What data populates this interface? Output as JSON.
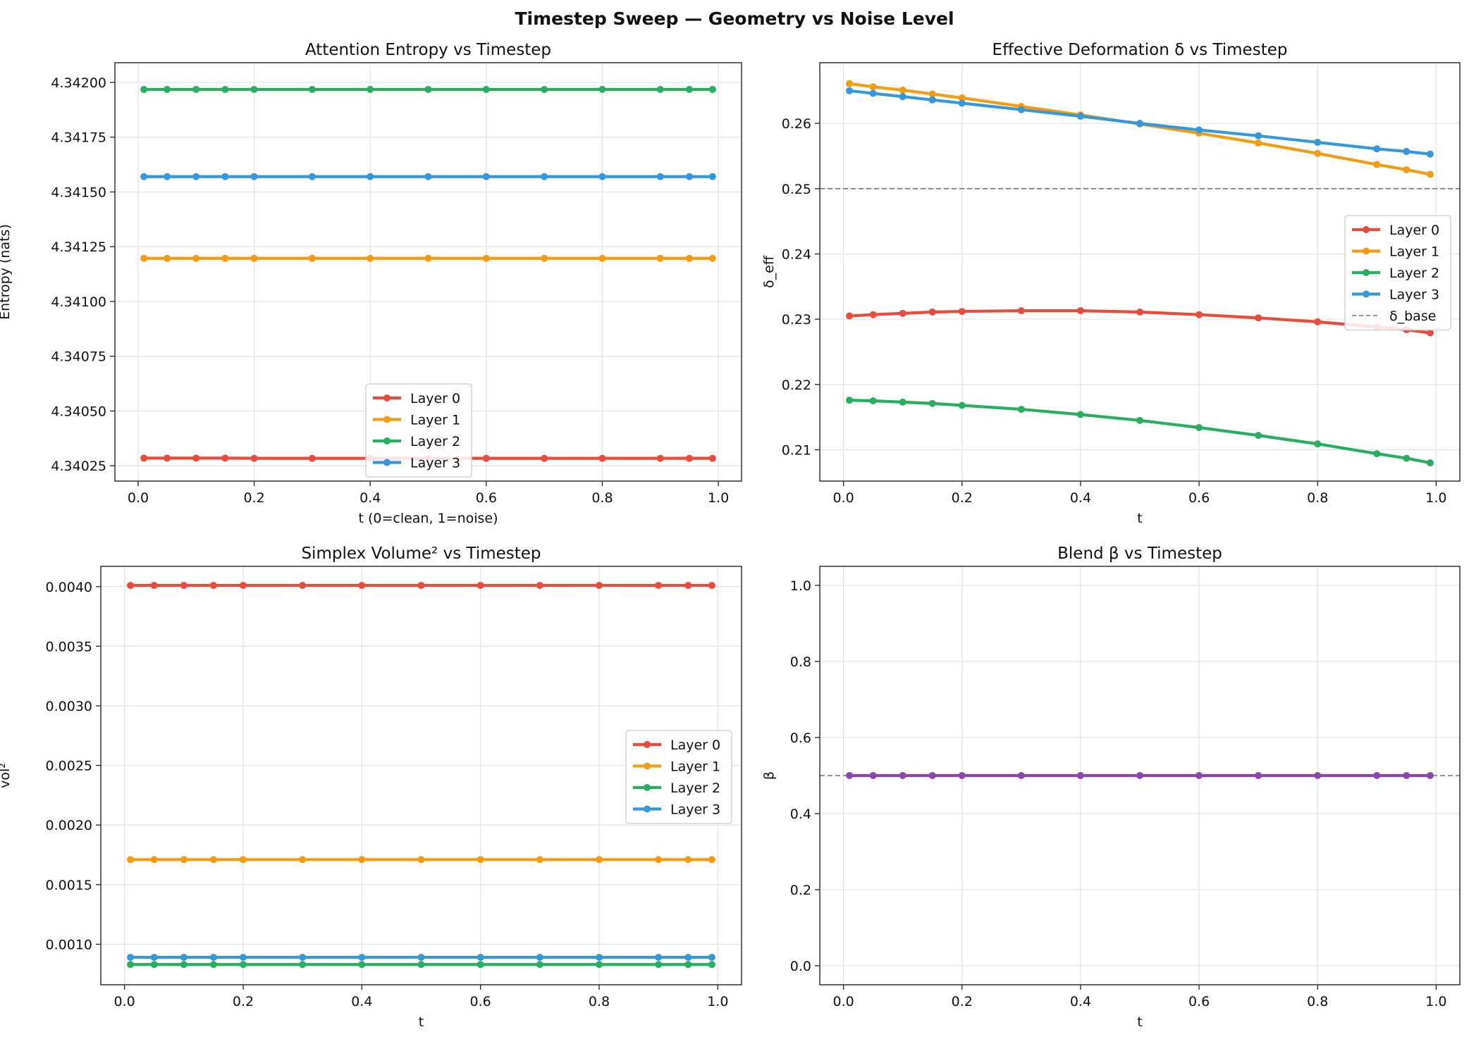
{
  "figure": {
    "title": "Timestep Sweep — Geometry vs Noise Level"
  },
  "chart_data": [
    {
      "type": "line",
      "title": "Attention Entropy vs Timestep",
      "xlabel": "t (0=clean, 1=noise)",
      "ylabel": "Entropy (nats)",
      "xlim": [
        -0.04,
        1.04
      ],
      "ylim": [
        4.34018,
        4.34209
      ],
      "xticks": [
        0.0,
        0.2,
        0.4,
        0.6,
        0.8,
        1.0
      ],
      "xtick_labels": [
        "0.0",
        "0.2",
        "0.4",
        "0.6",
        "0.8",
        "1.0"
      ],
      "yticks": [
        4.34025,
        4.3405,
        4.34075,
        4.341,
        4.34125,
        4.3415,
        4.34175,
        4.342
      ],
      "ytick_labels": [
        "4.34025",
        "4.34050",
        "4.34075",
        "4.34100",
        "4.34125",
        "4.34150",
        "4.34175",
        "4.34200"
      ],
      "grid": true,
      "legend": "lower-center",
      "x": [
        0.01,
        0.05,
        0.1,
        0.15,
        0.2,
        0.3,
        0.4,
        0.5,
        0.6,
        0.7,
        0.8,
        0.9,
        0.95,
        0.99
      ],
      "series": [
        {
          "name": "Layer 0",
          "color": "#e74c3c",
          "values": [
            4.340285,
            4.340285,
            4.340285,
            4.340285,
            4.340284,
            4.340284,
            4.340284,
            4.340284,
            4.340284,
            4.340284,
            4.340284,
            4.340284,
            4.340284,
            4.340284
          ]
        },
        {
          "name": "Layer 1",
          "color": "#f39c12",
          "values": [
            4.341197,
            4.341197,
            4.341197,
            4.341197,
            4.341197,
            4.341197,
            4.341197,
            4.341197,
            4.341197,
            4.341197,
            4.341197,
            4.341197,
            4.341197,
            4.341197
          ]
        },
        {
          "name": "Layer 2",
          "color": "#27ae60",
          "values": [
            4.341968,
            4.341968,
            4.341968,
            4.341968,
            4.341968,
            4.341968,
            4.341968,
            4.341968,
            4.341968,
            4.341968,
            4.341968,
            4.341968,
            4.341968,
            4.341968
          ]
        },
        {
          "name": "Layer 3",
          "color": "#3498db",
          "values": [
            4.34157,
            4.34157,
            4.34157,
            4.34157,
            4.34157,
            4.34157,
            4.34157,
            4.34157,
            4.34157,
            4.34157,
            4.34157,
            4.34157,
            4.34157,
            4.34157
          ]
        }
      ]
    },
    {
      "type": "line",
      "title": "Effective Deformation δ vs Timestep",
      "xlabel": "t",
      "ylabel": "δ_eff",
      "xlim": [
        -0.04,
        1.04
      ],
      "ylim": [
        0.2052,
        0.2693
      ],
      "xticks": [
        0.0,
        0.2,
        0.4,
        0.6,
        0.8,
        1.0
      ],
      "xtick_labels": [
        "0.0",
        "0.2",
        "0.4",
        "0.6",
        "0.8",
        "1.0"
      ],
      "yticks": [
        0.21,
        0.22,
        0.23,
        0.24,
        0.25,
        0.26
      ],
      "ytick_labels": [
        "0.21",
        "0.22",
        "0.23",
        "0.24",
        "0.25",
        "0.26"
      ],
      "grid": true,
      "legend": "center-right",
      "x": [
        0.01,
        0.05,
        0.1,
        0.15,
        0.2,
        0.3,
        0.4,
        0.5,
        0.6,
        0.7,
        0.8,
        0.9,
        0.95,
        0.99
      ],
      "series": [
        {
          "name": "Layer 0",
          "color": "#e74c3c",
          "values": [
            0.2305,
            0.2307,
            0.2309,
            0.2311,
            0.2312,
            0.2313,
            0.2313,
            0.2311,
            0.2307,
            0.2302,
            0.2296,
            0.2288,
            0.2284,
            0.2279
          ]
        },
        {
          "name": "Layer 1",
          "color": "#f39c12",
          "values": [
            0.2661,
            0.2656,
            0.2651,
            0.2645,
            0.2639,
            0.2626,
            0.2613,
            0.2599,
            0.2585,
            0.257,
            0.2554,
            0.2537,
            0.2529,
            0.2522
          ]
        },
        {
          "name": "Layer 2",
          "color": "#27ae60",
          "values": [
            0.2176,
            0.2175,
            0.2173,
            0.2171,
            0.2168,
            0.2162,
            0.2154,
            0.2145,
            0.2134,
            0.2122,
            0.2109,
            0.2094,
            0.2087,
            0.208
          ]
        },
        {
          "name": "Layer 3",
          "color": "#3498db",
          "values": [
            0.265,
            0.2646,
            0.2641,
            0.2636,
            0.2631,
            0.2621,
            0.2611,
            0.26,
            0.259,
            0.2581,
            0.2571,
            0.2561,
            0.2557,
            0.2553
          ]
        }
      ],
      "hlines": [
        {
          "name": "δ_base",
          "y": 0.25,
          "color": "#777777",
          "style": "dashed"
        }
      ]
    },
    {
      "type": "line",
      "title": "Simplex Volume² vs Timestep",
      "xlabel": "t",
      "ylabel": "vol²",
      "xlim": [
        -0.04,
        1.04
      ],
      "ylim": [
        0.00066,
        0.00417
      ],
      "xticks": [
        0.0,
        0.2,
        0.4,
        0.6,
        0.8,
        1.0
      ],
      "xtick_labels": [
        "0.0",
        "0.2",
        "0.4",
        "0.6",
        "0.8",
        "1.0"
      ],
      "yticks": [
        0.001,
        0.0015,
        0.002,
        0.0025,
        0.003,
        0.0035,
        0.004
      ],
      "ytick_labels": [
        "0.0010",
        "0.0015",
        "0.0020",
        "0.0025",
        "0.0030",
        "0.0035",
        "0.0040"
      ],
      "grid": true,
      "legend": "center-right",
      "x": [
        0.01,
        0.05,
        0.1,
        0.15,
        0.2,
        0.3,
        0.4,
        0.5,
        0.6,
        0.7,
        0.8,
        0.9,
        0.95,
        0.99
      ],
      "series": [
        {
          "name": "Layer 0",
          "color": "#e74c3c",
          "values": [
            0.00401,
            0.00401,
            0.00401,
            0.00401,
            0.00401,
            0.00401,
            0.00401,
            0.00401,
            0.00401,
            0.00401,
            0.00401,
            0.00401,
            0.00401,
            0.00401
          ]
        },
        {
          "name": "Layer 1",
          "color": "#f39c12",
          "values": [
            0.00171,
            0.00171,
            0.00171,
            0.00171,
            0.00171,
            0.00171,
            0.00171,
            0.00171,
            0.00171,
            0.00171,
            0.00171,
            0.00171,
            0.00171,
            0.00171
          ]
        },
        {
          "name": "Layer 2",
          "color": "#27ae60",
          "values": [
            0.00083,
            0.00083,
            0.00083,
            0.00083,
            0.00083,
            0.00083,
            0.00083,
            0.00083,
            0.00083,
            0.00083,
            0.00083,
            0.00083,
            0.00083,
            0.00083
          ]
        },
        {
          "name": "Layer 3",
          "color": "#3498db",
          "values": [
            0.00089,
            0.00089,
            0.00089,
            0.00089,
            0.00089,
            0.00089,
            0.00089,
            0.00089,
            0.00089,
            0.00089,
            0.00089,
            0.00089,
            0.00089,
            0.00089
          ]
        }
      ]
    },
    {
      "type": "line",
      "title": "Blend β vs Timestep",
      "xlabel": "t",
      "ylabel": "β",
      "xlim": [
        -0.04,
        1.04
      ],
      "ylim": [
        -0.05,
        1.05
      ],
      "xticks": [
        0.0,
        0.2,
        0.4,
        0.6,
        0.8,
        1.0
      ],
      "xtick_labels": [
        "0.0",
        "0.2",
        "0.4",
        "0.6",
        "0.8",
        "1.0"
      ],
      "yticks": [
        0.0,
        0.2,
        0.4,
        0.6,
        0.8,
        1.0
      ],
      "ytick_labels": [
        "0.0",
        "0.2",
        "0.4",
        "0.6",
        "0.8",
        "1.0"
      ],
      "grid": true,
      "legend": "none",
      "x": [
        0.01,
        0.05,
        0.1,
        0.15,
        0.2,
        0.3,
        0.4,
        0.5,
        0.6,
        0.7,
        0.8,
        0.9,
        0.95,
        0.99
      ],
      "series": [
        {
          "color": "#8e44ad",
          "values": [
            0.5,
            0.5,
            0.5,
            0.5,
            0.5,
            0.5,
            0.5,
            0.5,
            0.5,
            0.5,
            0.5,
            0.5,
            0.5,
            0.5
          ]
        }
      ],
      "hlines": [
        {
          "y": 0.5,
          "color": "#777777",
          "style": "dashed"
        }
      ]
    }
  ]
}
